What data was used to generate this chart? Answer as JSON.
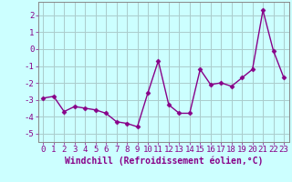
{
  "x": [
    0,
    1,
    2,
    3,
    4,
    5,
    6,
    7,
    8,
    9,
    10,
    11,
    12,
    13,
    14,
    15,
    16,
    17,
    18,
    19,
    20,
    21,
    22,
    23
  ],
  "y": [
    -2.9,
    -2.8,
    -3.7,
    -3.4,
    -3.5,
    -3.6,
    -3.8,
    -4.3,
    -4.4,
    -4.6,
    -2.6,
    -0.7,
    -3.3,
    -3.8,
    -3.8,
    -1.2,
    -2.1,
    -2.0,
    -2.2,
    -1.7,
    -1.2,
    2.3,
    -0.1,
    -1.7
  ],
  "line_color": "#880088",
  "marker": "D",
  "marker_size": 2.5,
  "bg_color": "#ccffff",
  "grid_color": "#aacccc",
  "xlabel": "Windchill (Refroidissement éolien,°C)",
  "xlim": [
    -0.5,
    23.5
  ],
  "ylim": [
    -5.5,
    2.8
  ],
  "yticks": [
    -5,
    -4,
    -3,
    -2,
    -1,
    0,
    1,
    2
  ],
  "xticks": [
    0,
    1,
    2,
    3,
    4,
    5,
    6,
    7,
    8,
    9,
    10,
    11,
    12,
    13,
    14,
    15,
    16,
    17,
    18,
    19,
    20,
    21,
    22,
    23
  ],
  "xlabel_fontsize": 7.0,
  "tick_fontsize": 6.5,
  "line_width": 1.0
}
